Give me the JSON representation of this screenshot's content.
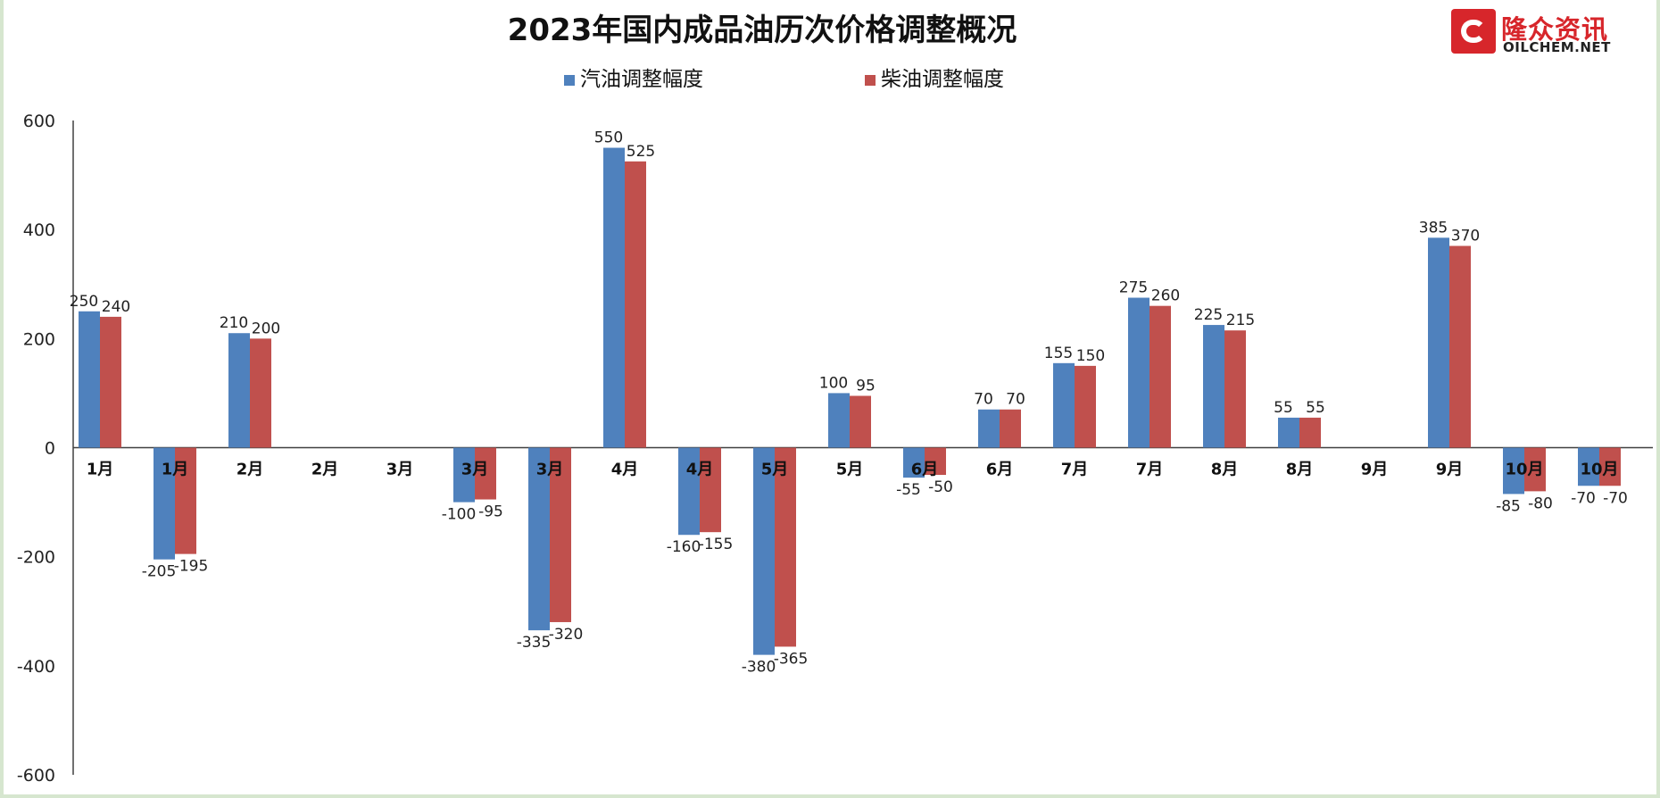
{
  "page": {
    "title": "2023年国内成品油历次价格调整概况",
    "logo": {
      "cn": "隆众资讯",
      "en": "OILCHEM.NET",
      "icon": "oilchem-logo-icon",
      "color": "#d7262b"
    }
  },
  "colors": {
    "gasoline": "#4f81bd",
    "diesel": "#c0504d",
    "axis": "#404040"
  },
  "chart_data": {
    "type": "bar",
    "title": "2023年国内成品油历次价格调整概况",
    "xlabel": "",
    "ylabel": "",
    "ylim": [
      -600,
      600
    ],
    "yticks": [
      600,
      400,
      200,
      0,
      -200,
      -400,
      -600
    ],
    "grid": false,
    "legend_position": "top-center",
    "categories": [
      "1月",
      "1月",
      "2月",
      "2月",
      "3月",
      "3月",
      "3月",
      "4月",
      "4月",
      "5月",
      "5月",
      "6月",
      "6月",
      "7月",
      "7月",
      "8月",
      "8月",
      "9月",
      "9月",
      "10月",
      "10月"
    ],
    "series": [
      {
        "name": "汽油调整幅度",
        "color": "#4f81bd",
        "values": [
          250,
          -205,
          210,
          null,
          null,
          -100,
          -335,
          550,
          -160,
          -380,
          100,
          -55,
          70,
          155,
          275,
          225,
          55,
          null,
          385,
          -85,
          -70
        ]
      },
      {
        "name": "柴油调整幅度",
        "color": "#c0504d",
        "values": [
          240,
          -195,
          200,
          null,
          null,
          -95,
          -320,
          525,
          -155,
          -365,
          95,
          -50,
          70,
          150,
          260,
          215,
          55,
          null,
          370,
          -80,
          -70
        ]
      }
    ]
  }
}
